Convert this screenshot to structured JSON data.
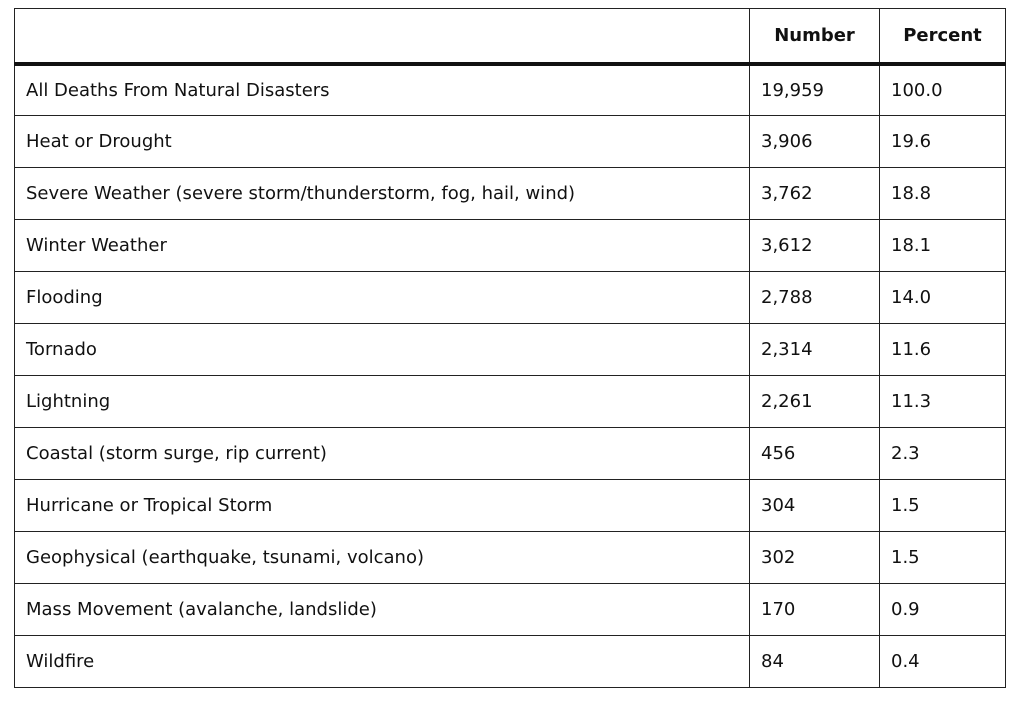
{
  "table": {
    "headers": [
      "",
      "Number",
      "Percent"
    ],
    "rows": [
      [
        "All Deaths From Natural Disasters",
        "19,959",
        "100.0"
      ],
      [
        "Heat or Drought",
        "3,906",
        "19.6"
      ],
      [
        "Severe Weather (severe storm/thunderstorm, fog, hail, wind)",
        "3,762",
        "18.8"
      ],
      [
        "Winter Weather",
        "3,612",
        "18.1"
      ],
      [
        "Flooding",
        "2,788",
        "14.0"
      ],
      [
        "Tornado",
        "2,314",
        "11.6"
      ],
      [
        "Lightning",
        "2,261",
        "11.3"
      ],
      [
        "Coastal (storm surge, rip current)",
        "456",
        "2.3"
      ],
      [
        "Hurricane or Tropical Storm",
        "304",
        "1.5"
      ],
      [
        "Geophysical (earthquake, tsunami, volcano)",
        "302",
        "1.5"
      ],
      [
        "Mass Movement (avalanche, landslide)",
        "170",
        "0.9"
      ],
      [
        "Wildfire",
        "84",
        "0.4"
      ]
    ]
  }
}
